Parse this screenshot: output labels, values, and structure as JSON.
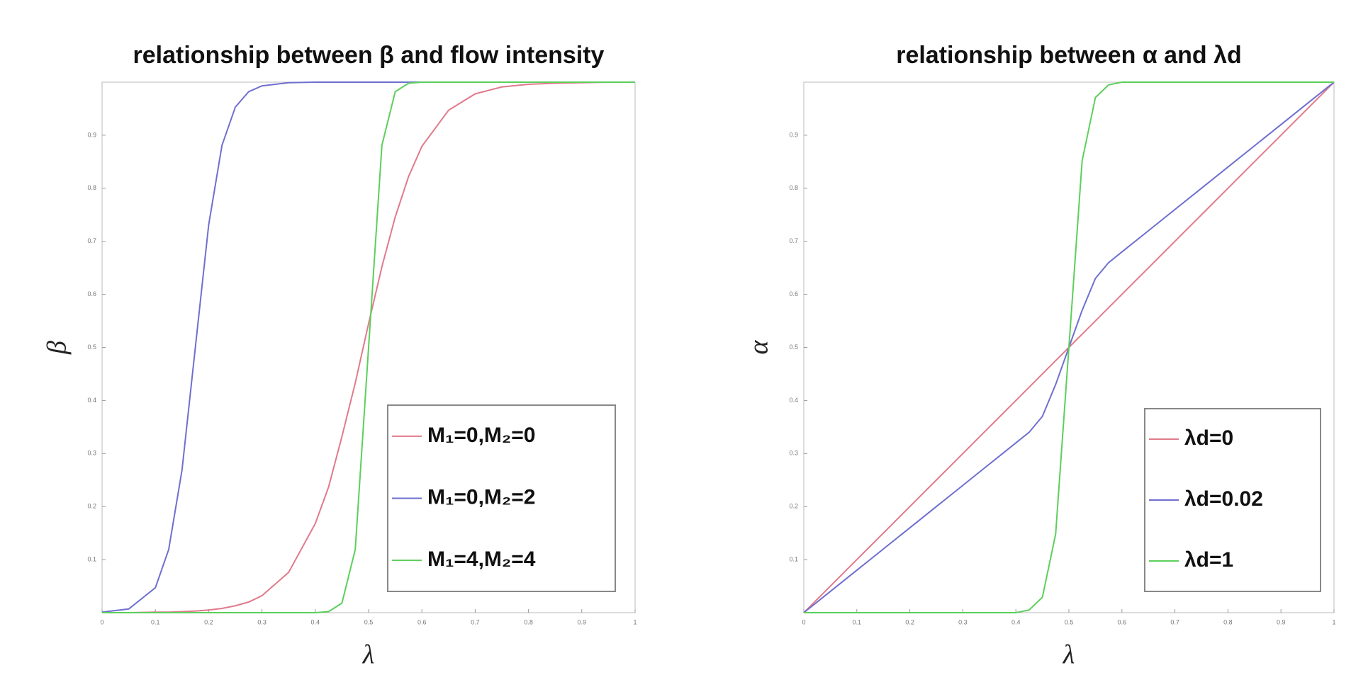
{
  "chart_data": [
    {
      "type": "line",
      "title": "relationship between β and flow intensity",
      "xlabel": "λ",
      "ylabel": "β",
      "x": [
        0,
        0.05,
        0.1,
        0.125,
        0.15,
        0.175,
        0.2,
        0.225,
        0.25,
        0.275,
        0.3,
        0.35,
        0.4,
        0.425,
        0.45,
        0.475,
        0.5,
        0.525,
        0.55,
        0.575,
        0.6,
        0.65,
        0.7,
        0.75,
        0.8,
        0.85,
        0.9,
        0.95,
        1
      ],
      "series": [
        {
          "name": "M₁=0,M₂=0",
          "color": "#e07a8a",
          "values": [
            0,
            0,
            0.001,
            0.001,
            0.002,
            0.003,
            0.005,
            0.008,
            0.013,
            0.02,
            0.032,
            0.076,
            0.168,
            0.237,
            0.332,
            0.433,
            0.545,
            0.652,
            0.746,
            0.822,
            0.879,
            0.947,
            0.978,
            0.991,
            0.996,
            0.998,
            0.999,
            1,
            1
          ]
        },
        {
          "name": "M₁=0,M₂=2",
          "color": "#6f6fd0",
          "values": [
            0.001,
            0.007,
            0.047,
            0.119,
            0.269,
            0.5,
            0.731,
            0.881,
            0.953,
            0.982,
            0.993,
            0.999,
            1,
            1,
            1,
            1,
            1,
            1,
            1,
            1,
            1,
            1,
            1,
            1,
            1,
            1,
            1,
            1,
            1
          ]
        },
        {
          "name": "M₁=4,M₂=4",
          "color": "#5ccf5c",
          "values": [
            0,
            0,
            0,
            0,
            0,
            0,
            0,
            0,
            0,
            0,
            0,
            0,
            0,
            0.002,
            0.018,
            0.119,
            0.5,
            0.881,
            0.982,
            0.998,
            1,
            1,
            1,
            1,
            1,
            1,
            1,
            1,
            1
          ]
        }
      ],
      "xlim": [
        0,
        1
      ],
      "ylim": [
        0,
        1
      ],
      "xticks": [
        0,
        0.1,
        0.2,
        0.3,
        0.4,
        0.5,
        0.6,
        0.7,
        0.8,
        0.9,
        1
      ],
      "yticks": [
        0.1,
        0.2,
        0.3,
        0.4,
        0.5,
        0.6,
        0.7,
        0.8,
        0.9
      ],
      "legend": "lower right"
    },
    {
      "type": "line",
      "title": "relationship between α and λd",
      "xlabel": "λ",
      "ylabel": "α",
      "x": [
        0,
        0.05,
        0.1,
        0.125,
        0.15,
        0.175,
        0.2,
        0.225,
        0.25,
        0.275,
        0.3,
        0.35,
        0.4,
        0.425,
        0.45,
        0.475,
        0.5,
        0.525,
        0.55,
        0.575,
        0.6,
        0.65,
        0.7,
        0.75,
        0.8,
        0.85,
        0.9,
        0.95,
        1
      ],
      "series": [
        {
          "name": "λd=0",
          "color": "#e07a8a",
          "values": [
            0,
            0.05,
            0.1,
            0.125,
            0.15,
            0.175,
            0.2,
            0.225,
            0.25,
            0.275,
            0.3,
            0.35,
            0.4,
            0.425,
            0.45,
            0.475,
            0.5,
            0.525,
            0.55,
            0.575,
            0.6,
            0.65,
            0.7,
            0.75,
            0.8,
            0.85,
            0.9,
            0.95,
            1
          ]
        },
        {
          "name": "λd=0.02",
          "color": "#6f6fd0",
          "values": [
            0,
            0.04,
            0.08,
            0.1,
            0.12,
            0.14,
            0.16,
            0.18,
            0.2,
            0.22,
            0.24,
            0.28,
            0.32,
            0.34,
            0.37,
            0.43,
            0.5,
            0.57,
            0.63,
            0.66,
            0.68,
            0.72,
            0.76,
            0.8,
            0.84,
            0.88,
            0.92,
            0.96,
            1
          ]
        },
        {
          "name": "λd=1",
          "color": "#5ccf5c",
          "values": [
            0,
            0,
            0,
            0,
            0,
            0,
            0,
            0,
            0,
            0,
            0,
            0,
            0,
            0.005,
            0.029,
            0.148,
            0.5,
            0.852,
            0.971,
            0.995,
            1,
            1,
            1,
            1,
            1,
            1,
            1,
            1,
            1
          ]
        }
      ],
      "xlim": [
        0,
        1
      ],
      "ylim": [
        0,
        1
      ],
      "xticks": [
        0,
        0.1,
        0.2,
        0.3,
        0.4,
        0.5,
        0.6,
        0.7,
        0.8,
        0.9,
        1
      ],
      "yticks": [
        0.1,
        0.2,
        0.3,
        0.4,
        0.5,
        0.6,
        0.7,
        0.8,
        0.9
      ],
      "legend": "lower right"
    }
  ]
}
